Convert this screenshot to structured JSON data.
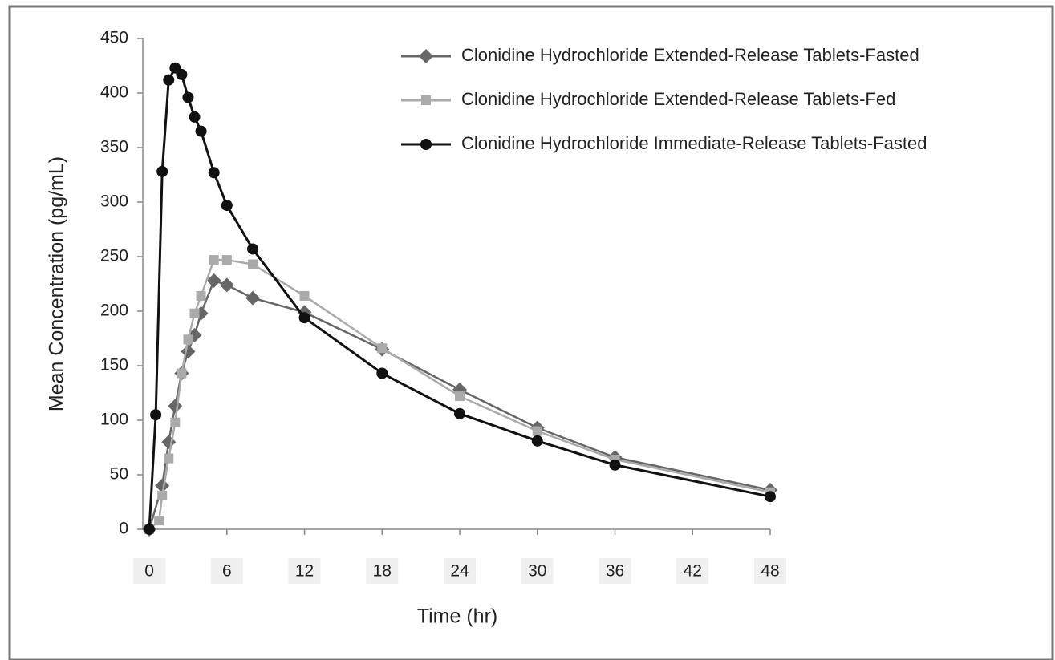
{
  "chart_data": {
    "type": "line",
    "xlabel": "Time (hr)",
    "ylabel": "Mean Concentration (pg/mL)",
    "xlim": [
      -0.5,
      48
    ],
    "ylim": [
      0,
      450
    ],
    "xticks": [
      0,
      6,
      12,
      18,
      24,
      30,
      36,
      42,
      48
    ],
    "yticks": [
      0,
      50,
      100,
      150,
      200,
      250,
      300,
      350,
      400,
      450
    ],
    "legend_position": "upper right",
    "series": [
      {
        "name": "Clonidine Hydrochloride Extended-Release Tablets-Fasted",
        "color": "#666666",
        "marker": "diamond",
        "x": [
          0,
          1,
          1.5,
          2,
          2.5,
          3,
          3.5,
          4,
          5,
          6,
          8,
          12,
          18,
          24,
          30,
          36,
          48
        ],
        "values": [
          0,
          40,
          80,
          113,
          143,
          163,
          178,
          198,
          228,
          224,
          212,
          199,
          165,
          128,
          93,
          66,
          36
        ]
      },
      {
        "name": "Clonidine Hydrochloride Extended-Release Tablets-Fed",
        "color": "#aaaaaa",
        "marker": "square",
        "x": [
          0,
          0.75,
          1,
          1.5,
          2,
          2.5,
          3,
          3.5,
          4,
          5,
          6,
          8,
          12,
          18,
          24,
          30,
          36,
          48
        ],
        "values": [
          0,
          8,
          31,
          65,
          98,
          143,
          174,
          198,
          214,
          247,
          247,
          243,
          214,
          166,
          122,
          90,
          64,
          34
        ]
      },
      {
        "name": "Clonidine Hydrochloride Immediate-Release Tablets-Fasted",
        "color": "#111111",
        "marker": "circle",
        "x": [
          0,
          0.5,
          1,
          1.5,
          2,
          2.5,
          3,
          3.5,
          4,
          5,
          6,
          8,
          12,
          18,
          24,
          30,
          36,
          48
        ],
        "values": [
          0,
          105,
          328,
          412,
          423,
          417,
          396,
          378,
          365,
          327,
          297,
          257,
          194,
          143,
          106,
          81,
          59,
          30
        ]
      }
    ]
  }
}
